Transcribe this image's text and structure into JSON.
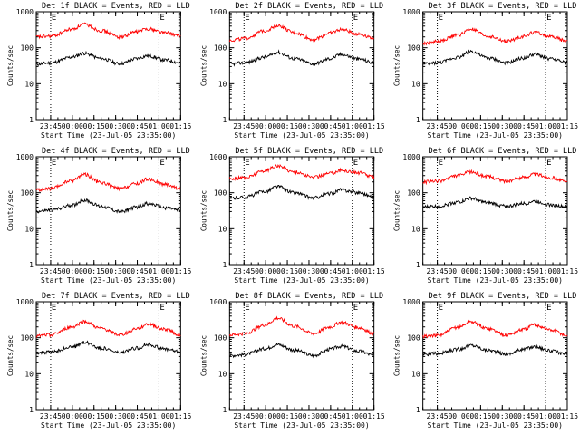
{
  "page": {
    "background": "#ffffff"
  },
  "colors": {
    "events": "#000000",
    "lld": "#ff0000",
    "marker": "#000000"
  },
  "charts_layout": {
    "rows": 3,
    "cols": 3
  },
  "chart_data": [
    {
      "type": "line",
      "title": "Det 1f BLACK = Events, RED = LLD",
      "xlabel": "Start Time (23-Jul-05 23:35:00)",
      "ylabel": "Counts/sec",
      "yscale": "log",
      "ylim": [
        1,
        1000
      ],
      "ytick_labels": [
        "1",
        "10",
        "100",
        "1000"
      ],
      "xlim_minutes": [
        0,
        100
      ],
      "xtick_labels": [
        "23:45",
        "00:00",
        "00:15",
        "00:30",
        "00:45",
        "01:00",
        "01:15"
      ],
      "markers": [
        {
          "x": "23:45",
          "label": "E"
        },
        {
          "x": "01:00",
          "label": "E"
        }
      ],
      "series": [
        {
          "name": "Events",
          "color": "#000000",
          "x": [
            "23:35",
            "23:45",
            "00:00",
            "00:08",
            "00:20",
            "00:33",
            "00:45",
            "00:52",
            "01:05",
            "01:15"
          ],
          "values": [
            35,
            38,
            55,
            70,
            50,
            36,
            50,
            60,
            45,
            38
          ]
        },
        {
          "name": "LLD",
          "color": "#ff0000",
          "x": [
            "23:35",
            "23:45",
            "00:00",
            "00:08",
            "00:20",
            "00:33",
            "00:45",
            "00:52",
            "01:05",
            "01:15"
          ],
          "values": [
            200,
            210,
            330,
            450,
            300,
            200,
            280,
            340,
            260,
            210
          ]
        }
      ]
    },
    {
      "type": "line",
      "title": "Det 2f BLACK = Events, RED = LLD",
      "xlabel": "Start Time (23-Jul-05 23:35:00)",
      "ylabel": "Counts/sec",
      "yscale": "log",
      "ylim": [
        1,
        1000
      ],
      "ytick_labels": [
        "1",
        "10",
        "100",
        "1000"
      ],
      "xlim_minutes": [
        0,
        100
      ],
      "xtick_labels": [
        "23:45",
        "00:00",
        "00:15",
        "00:30",
        "00:45",
        "01:00",
        "01:15"
      ],
      "markers": [
        {
          "x": "23:45",
          "label": "E"
        },
        {
          "x": "01:00",
          "label": "E"
        }
      ],
      "series": [
        {
          "name": "Events",
          "color": "#000000",
          "x": [
            "23:35",
            "23:45",
            "00:00",
            "00:08",
            "00:20",
            "00:33",
            "00:45",
            "00:52",
            "01:05",
            "01:15"
          ],
          "values": [
            35,
            38,
            55,
            75,
            50,
            36,
            50,
            65,
            48,
            38
          ]
        },
        {
          "name": "LLD",
          "color": "#ff0000",
          "x": [
            "23:35",
            "23:45",
            "00:00",
            "00:08",
            "00:20",
            "00:33",
            "00:45",
            "00:52",
            "01:05",
            "01:15"
          ],
          "values": [
            160,
            180,
            300,
            420,
            260,
            170,
            260,
            320,
            240,
            190
          ]
        }
      ]
    },
    {
      "type": "line",
      "title": "Det 3f BLACK = Events, RED = LLD",
      "xlabel": "Start Time (23-Jul-05 23:35:00)",
      "ylabel": "Counts/sec",
      "yscale": "log",
      "ylim": [
        1,
        1000
      ],
      "ytick_labels": [
        "1",
        "10",
        "100",
        "1000"
      ],
      "xlim_minutes": [
        0,
        100
      ],
      "xtick_labels": [
        "23:45",
        "00:00",
        "00:15",
        "00:30",
        "00:45",
        "01:00",
        "01:15"
      ],
      "markers": [
        {
          "x": "23:45",
          "label": "E"
        },
        {
          "x": "01:00",
          "label": "E"
        }
      ],
      "series": [
        {
          "name": "Events",
          "color": "#000000",
          "x": [
            "23:35",
            "23:45",
            "00:00",
            "00:08",
            "00:20",
            "00:33",
            "00:45",
            "00:52",
            "01:05",
            "01:15"
          ],
          "values": [
            35,
            38,
            55,
            80,
            52,
            38,
            52,
            65,
            48,
            38
          ]
        },
        {
          "name": "LLD",
          "color": "#ff0000",
          "x": [
            "23:35",
            "23:45",
            "00:00",
            "00:08",
            "00:20",
            "00:33",
            "00:45",
            "00:52",
            "01:05",
            "01:15"
          ],
          "values": [
            130,
            150,
            230,
            330,
            210,
            150,
            210,
            270,
            200,
            150
          ]
        }
      ]
    },
    {
      "type": "line",
      "title": "Det 4f BLACK = Events, RED = LLD",
      "xlabel": "Start Time (23-Jul-05 23:35:00)",
      "ylabel": "Counts/sec",
      "yscale": "log",
      "ylim": [
        1,
        1000
      ],
      "ytick_labels": [
        "1",
        "10",
        "100",
        "1000"
      ],
      "xlim_minutes": [
        0,
        100
      ],
      "xtick_labels": [
        "23:45",
        "00:00",
        "00:15",
        "00:30",
        "00:45",
        "01:00",
        "01:15"
      ],
      "markers": [
        {
          "x": "23:45",
          "label": "E"
        },
        {
          "x": "01:00",
          "label": "E"
        }
      ],
      "series": [
        {
          "name": "Events",
          "color": "#000000",
          "x": [
            "23:35",
            "23:45",
            "00:00",
            "00:08",
            "00:20",
            "00:33",
            "00:45",
            "00:52",
            "01:05",
            "01:15"
          ],
          "values": [
            30,
            33,
            45,
            62,
            42,
            30,
            40,
            50,
            38,
            32
          ]
        },
        {
          "name": "LLD",
          "color": "#ff0000",
          "x": [
            "23:35",
            "23:45",
            "00:00",
            "00:08",
            "00:20",
            "00:33",
            "00:45",
            "00:52",
            "01:05",
            "01:15"
          ],
          "values": [
            120,
            130,
            220,
            330,
            190,
            130,
            180,
            240,
            170,
            130
          ]
        }
      ]
    },
    {
      "type": "line",
      "title": "Det 5f BLACK = Events, RED = LLD",
      "xlabel": "Start Time (23-Jul-05 23:35:00)",
      "ylabel": "Counts/sec",
      "yscale": "log",
      "ylim": [
        1,
        1000
      ],
      "ytick_labels": [
        "1",
        "10",
        "100",
        "1000"
      ],
      "xlim_minutes": [
        0,
        100
      ],
      "xtick_labels": [
        "23:45",
        "00:00",
        "00:15",
        "00:30",
        "00:45",
        "01:00",
        "01:15"
      ],
      "markers": [
        {
          "x": "23:45",
          "label": "E"
        },
        {
          "x": "01:00",
          "label": "E"
        }
      ],
      "series": [
        {
          "name": "Events",
          "color": "#000000",
          "x": [
            "23:35",
            "23:45",
            "00:00",
            "00:08",
            "00:20",
            "00:33",
            "00:45",
            "00:52",
            "01:05",
            "01:15"
          ],
          "values": [
            70,
            75,
            110,
            150,
            100,
            72,
            95,
            120,
            100,
            75
          ]
        },
        {
          "name": "LLD",
          "color": "#ff0000",
          "x": [
            "23:35",
            "23:45",
            "00:00",
            "00:08",
            "00:20",
            "00:33",
            "00:45",
            "00:52",
            "01:05",
            "01:15"
          ],
          "values": [
            250,
            260,
            420,
            560,
            380,
            270,
            350,
            420,
            360,
            270
          ]
        }
      ]
    },
    {
      "type": "line",
      "title": "Det 6f BLACK = Events, RED = LLD",
      "xlabel": "Start Time (23-Jul-05 23:35:00)",
      "ylabel": "Counts/sec",
      "yscale": "log",
      "ylim": [
        1,
        1000
      ],
      "ytick_labels": [
        "1",
        "10",
        "100",
        "1000"
      ],
      "xlim_minutes": [
        0,
        100
      ],
      "xtick_labels": [
        "23:45",
        "00:00",
        "00:15",
        "00:30",
        "00:45",
        "01:00",
        "01:15"
      ],
      "markers": [
        {
          "x": "23:45",
          "label": "E"
        },
        {
          "x": "01:00",
          "label": "E"
        }
      ],
      "series": [
        {
          "name": "Events",
          "color": "#000000",
          "x": [
            "23:35",
            "23:45",
            "00:00",
            "00:08",
            "00:20",
            "00:33",
            "00:45",
            "00:52",
            "01:05",
            "01:15"
          ],
          "values": [
            40,
            42,
            55,
            70,
            52,
            42,
            50,
            58,
            45,
            40
          ]
        },
        {
          "name": "LLD",
          "color": "#ff0000",
          "x": [
            "23:35",
            "23:45",
            "00:00",
            "00:08",
            "00:20",
            "00:33",
            "00:45",
            "00:52",
            "01:05",
            "01:15"
          ],
          "values": [
            200,
            210,
            300,
            380,
            280,
            210,
            270,
            330,
            260,
            200
          ]
        }
      ]
    },
    {
      "type": "line",
      "title": "Det 7f BLACK = Events, RED = LLD",
      "xlabel": "Start Time (23-Jul-05 23:35:00)",
      "ylabel": "Counts/sec",
      "yscale": "log",
      "ylim": [
        1,
        1000
      ],
      "ytick_labels": [
        "1",
        "10",
        "100",
        "1000"
      ],
      "xlim_minutes": [
        0,
        100
      ],
      "xtick_labels": [
        "23:45",
        "00:00",
        "00:15",
        "00:30",
        "00:45",
        "01:00",
        "01:15"
      ],
      "markers": [
        {
          "x": "23:45",
          "label": "E"
        },
        {
          "x": "01:00",
          "label": "E"
        }
      ],
      "series": [
        {
          "name": "Events",
          "color": "#000000",
          "x": [
            "23:35",
            "23:45",
            "00:00",
            "00:08",
            "00:20",
            "00:33",
            "00:45",
            "00:52",
            "01:05",
            "01:15"
          ],
          "values": [
            38,
            40,
            55,
            75,
            52,
            38,
            52,
            65,
            48,
            40
          ]
        },
        {
          "name": "LLD",
          "color": "#ff0000",
          "x": [
            "23:35",
            "23:45",
            "00:00",
            "00:08",
            "00:20",
            "00:33",
            "00:45",
            "00:52",
            "01:05",
            "01:15"
          ],
          "values": [
            110,
            120,
            200,
            280,
            180,
            120,
            180,
            240,
            170,
            120
          ]
        }
      ]
    },
    {
      "type": "line",
      "title": "Det 8f BLACK = Events, RED = LLD",
      "xlabel": "Start Time (23-Jul-05 23:35:00)",
      "ylabel": "Counts/sec",
      "yscale": "log",
      "ylim": [
        1,
        1000
      ],
      "ytick_labels": [
        "1",
        "10",
        "100",
        "1000"
      ],
      "xlim_minutes": [
        0,
        100
      ],
      "xtick_labels": [
        "23:45",
        "00:00",
        "00:15",
        "00:30",
        "00:45",
        "01:00",
        "01:15"
      ],
      "markers": [
        {
          "x": "23:45",
          "label": "E"
        },
        {
          "x": "01:00",
          "label": "E"
        }
      ],
      "series": [
        {
          "name": "Events",
          "color": "#000000",
          "x": [
            "23:35",
            "23:45",
            "00:00",
            "00:08",
            "00:20",
            "00:33",
            "00:45",
            "00:52",
            "01:05",
            "01:15"
          ],
          "values": [
            32,
            34,
            50,
            65,
            45,
            32,
            48,
            58,
            42,
            32
          ]
        },
        {
          "name": "LLD",
          "color": "#ff0000",
          "x": [
            "23:35",
            "23:45",
            "00:00",
            "00:08",
            "00:20",
            "00:33",
            "00:45",
            "00:52",
            "01:05",
            "01:15"
          ],
          "values": [
            120,
            130,
            230,
            350,
            210,
            130,
            200,
            270,
            190,
            130
          ]
        }
      ]
    },
    {
      "type": "line",
      "title": "Det 9f BLACK = Events, RED = LLD",
      "xlabel": "Start Time (23-Jul-05 23:35:00)",
      "ylabel": "Counts/sec",
      "yscale": "log",
      "ylim": [
        1,
        1000
      ],
      "ytick_labels": [
        "1",
        "10",
        "100",
        "1000"
      ],
      "xlim_minutes": [
        0,
        100
      ],
      "xtick_labels": [
        "23:45",
        "00:00",
        "00:15",
        "00:30",
        "00:45",
        "01:00",
        "01:15"
      ],
      "markers": [
        {
          "x": "23:45",
          "label": "E"
        },
        {
          "x": "01:00",
          "label": "E"
        }
      ],
      "series": [
        {
          "name": "Events",
          "color": "#000000",
          "x": [
            "23:35",
            "23:45",
            "00:00",
            "00:08",
            "00:20",
            "00:33",
            "00:45",
            "00:52",
            "01:05",
            "01:15"
          ],
          "values": [
            35,
            36,
            48,
            62,
            45,
            35,
            48,
            56,
            42,
            34
          ]
        },
        {
          "name": "LLD",
          "color": "#ff0000",
          "x": [
            "23:35",
            "23:45",
            "00:00",
            "00:08",
            "00:20",
            "00:33",
            "00:45",
            "00:52",
            "01:05",
            "01:15"
          ],
          "values": [
            110,
            115,
            200,
            280,
            180,
            120,
            170,
            230,
            160,
            115
          ]
        }
      ]
    }
  ]
}
